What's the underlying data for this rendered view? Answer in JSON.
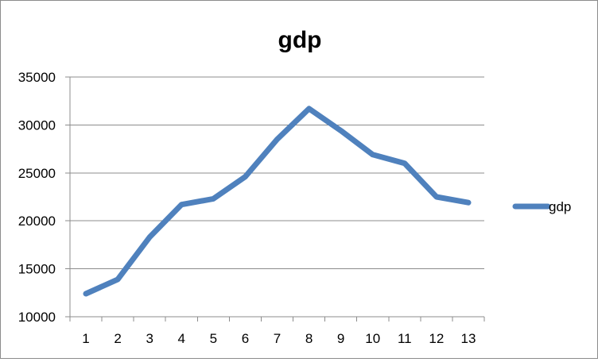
{
  "chart_data": {
    "type": "line",
    "title": "gdp",
    "xlabel": "",
    "ylabel": "",
    "categories": [
      "1",
      "2",
      "3",
      "4",
      "5",
      "6",
      "7",
      "8",
      "9",
      "10",
      "11",
      "12",
      "13"
    ],
    "series": [
      {
        "name": "gdp",
        "values": [
          12400,
          13900,
          18300,
          21700,
          22300,
          24600,
          28500,
          31700,
          29400,
          26900,
          26000,
          22500,
          21900
        ]
      }
    ],
    "ylim": [
      10000,
      35000
    ],
    "yticks": [
      "10000",
      "15000",
      "20000",
      "25000",
      "30000",
      "35000"
    ],
    "grid": true,
    "legend_position": "right",
    "colors": {
      "series_line": "#4f81bd",
      "grid": "#8c8c8c",
      "axis": "#8c8c8c",
      "frame": "#8c8c8c"
    }
  }
}
